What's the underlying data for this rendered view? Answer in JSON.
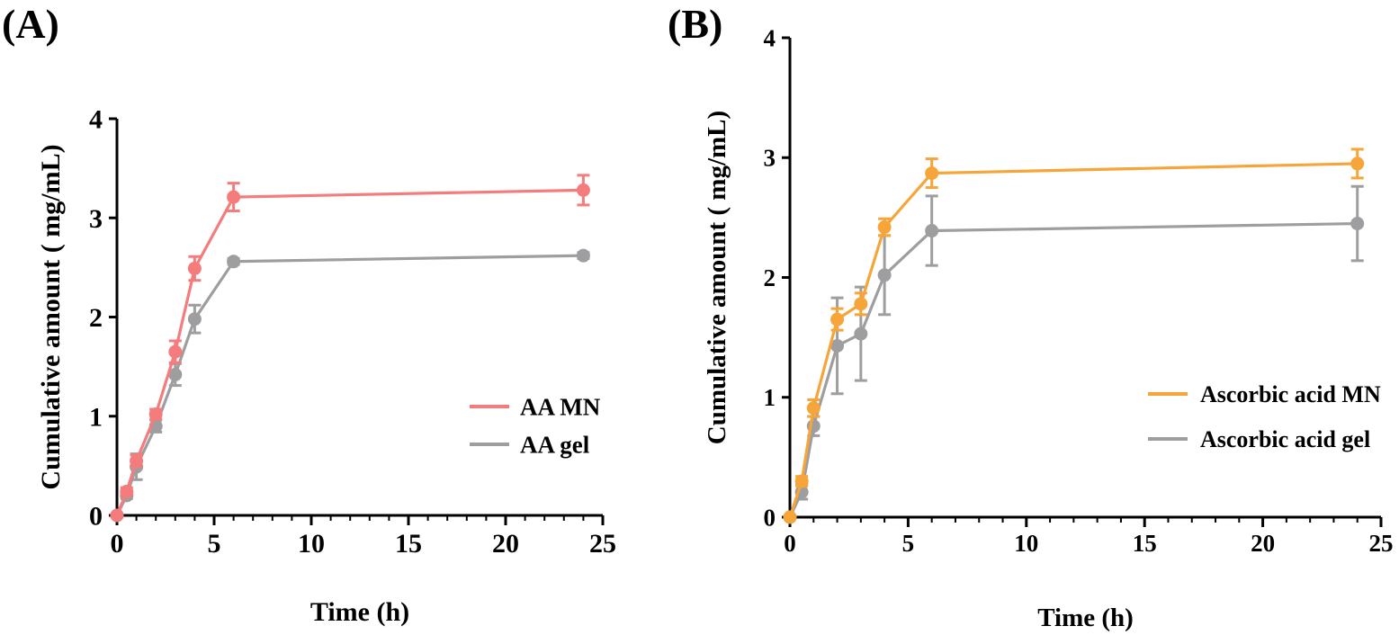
{
  "panels": [
    {
      "label": "(A)"
    },
    {
      "label": "(B)"
    }
  ],
  "chart_data": [
    {
      "type": "line",
      "x": [
        0,
        0.5,
        1,
        2,
        3,
        4,
        6,
        24
      ],
      "xlabel": "Time (h)",
      "ylabel": "Cumulative amount ( mg/mL)",
      "xlim": [
        0,
        25
      ],
      "ylim": [
        0,
        4
      ],
      "xticks": [
        0,
        5,
        10,
        15,
        20,
        25
      ],
      "yticks": [
        0,
        1,
        2,
        3,
        4
      ],
      "legend_position": "right",
      "series": [
        {
          "name": "AA MN",
          "color": "#f47c7c",
          "values": [
            0.0,
            0.24,
            0.55,
            1.02,
            1.65,
            2.49,
            3.21,
            3.28
          ],
          "errors": [
            0.0,
            0.04,
            0.06,
            0.05,
            0.11,
            0.12,
            0.14,
            0.15
          ]
        },
        {
          "name": "AA gel",
          "color": "#9e9ea0",
          "values": [
            0.0,
            0.2,
            0.49,
            0.9,
            1.42,
            1.98,
            2.56,
            2.62
          ],
          "errors": [
            0.0,
            0.03,
            0.13,
            0.06,
            0.11,
            0.14,
            0.03,
            0.03
          ]
        }
      ]
    },
    {
      "type": "line",
      "x": [
        0,
        0.5,
        1,
        2,
        3,
        4,
        6,
        24
      ],
      "xlabel": "Time (h)",
      "ylabel": "Cumulative amount ( mg/mL)",
      "xlim": [
        0,
        25
      ],
      "ylim": [
        0,
        4
      ],
      "xticks": [
        0,
        5,
        10,
        15,
        20,
        25
      ],
      "yticks": [
        0,
        1,
        2,
        3,
        4
      ],
      "legend_position": "right",
      "series": [
        {
          "name": "Ascorbic acid MN",
          "color": "#f6a53a",
          "values": [
            0.0,
            0.3,
            0.91,
            1.65,
            1.78,
            2.42,
            2.87,
            2.95
          ],
          "errors": [
            0.0,
            0.04,
            0.07,
            0.09,
            0.09,
            0.07,
            0.12,
            0.12
          ]
        },
        {
          "name": "Ascorbic acid gel",
          "color": "#9e9ea0",
          "values": [
            0.0,
            0.21,
            0.76,
            1.43,
            1.53,
            2.02,
            2.39,
            2.45
          ],
          "errors": [
            0.0,
            0.06,
            0.08,
            0.4,
            0.39,
            0.33,
            0.29,
            0.31
          ]
        }
      ]
    }
  ]
}
